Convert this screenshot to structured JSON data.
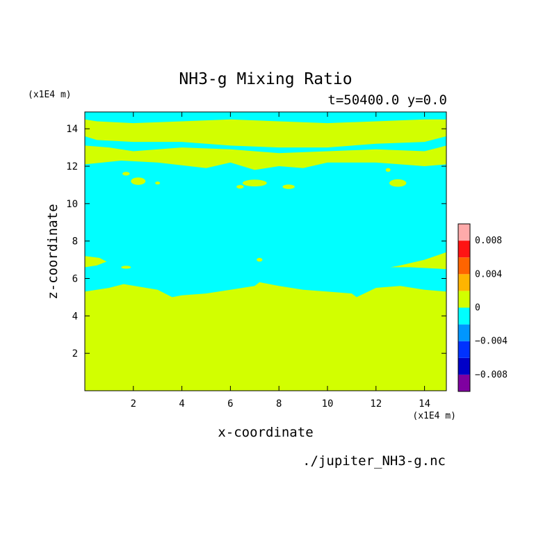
{
  "chart_data": {
    "type": "heatmap",
    "title": "NH3-g Mixing Ratio",
    "subtitle": "t=50400.0 y=0.0",
    "xlabel": "x-coordinate",
    "ylabel": "z-coordinate",
    "x_unit": "(x1E4 m)",
    "y_unit": "(x1E4 m)",
    "xlim": [
      0,
      14.9
    ],
    "ylim": [
      0,
      14.9
    ],
    "x_ticks": [
      2,
      4,
      6,
      8,
      10,
      12,
      14
    ],
    "y_ticks": [
      2,
      4,
      6,
      8,
      10,
      12,
      14
    ],
    "source_file": "./jupiter_NH3-g.nc",
    "colorbar": {
      "levels": [
        -0.01,
        -0.008,
        -0.006,
        -0.004,
        -0.002,
        0,
        0.002,
        0.004,
        0.006,
        0.008,
        0.01
      ],
      "colors": [
        "#7f00a0",
        "#0000c8",
        "#0032ff",
        "#0096ff",
        "#00ffff",
        "#d2ff00",
        "#ffb400",
        "#ff6400",
        "#ff1414",
        "#ffaaaa"
      ],
      "tick_labels": [
        {
          "value": 0.008,
          "label": "0.008"
        },
        {
          "value": 0.004,
          "label": "0.004"
        },
        {
          "value": 0,
          "label": "0"
        },
        {
          "value": -0.004,
          "label": "−0.004"
        },
        {
          "value": -0.008,
          "label": "−0.008"
        }
      ]
    },
    "regions": [
      {
        "name": "upper-band",
        "level": "0 to 0.002",
        "top": [
          [
            0,
            14.5
          ],
          [
            0.5,
            14.4
          ],
          [
            2,
            14.3
          ],
          [
            4,
            14.4
          ],
          [
            6,
            14.5
          ],
          [
            8,
            14.4
          ],
          [
            10,
            14.3
          ],
          [
            12,
            14.4
          ],
          [
            14,
            14.5
          ],
          [
            14.9,
            14.5
          ]
        ],
        "bottom": [
          [
            0,
            13.6
          ],
          [
            0.5,
            13.4
          ],
          [
            2,
            13.3
          ],
          [
            4,
            13.3
          ],
          [
            6,
            13.1
          ],
          [
            8,
            13.0
          ],
          [
            10,
            13.0
          ],
          [
            12,
            13.2
          ],
          [
            14,
            13.3
          ],
          [
            14.9,
            13.6
          ]
        ]
      },
      {
        "name": "middle-band",
        "level": "0 to 0.002",
        "top": [
          [
            0,
            13.1
          ],
          [
            1,
            13.0
          ],
          [
            2,
            12.8
          ],
          [
            4,
            13.0
          ],
          [
            6,
            12.9
          ],
          [
            8,
            12.7
          ],
          [
            10,
            12.8
          ],
          [
            12,
            12.9
          ],
          [
            14,
            12.8
          ],
          [
            14.9,
            13.1
          ]
        ],
        "bottom": [
          [
            0,
            12.1
          ],
          [
            1.5,
            12.3
          ],
          [
            3,
            12.2
          ],
          [
            5,
            11.9
          ],
          [
            6,
            12.2
          ],
          [
            7,
            11.8
          ],
          [
            8,
            12.0
          ],
          [
            9,
            11.9
          ],
          [
            10,
            12.2
          ],
          [
            12,
            12.2
          ],
          [
            14,
            12.0
          ],
          [
            14.9,
            12.1
          ]
        ]
      },
      {
        "name": "lower-region",
        "level": "0 to 0.002",
        "top": [
          [
            0,
            5.3
          ],
          [
            1,
            5.5
          ],
          [
            1.6,
            5.7
          ],
          [
            3,
            5.4
          ],
          [
            3.6,
            5.0
          ],
          [
            4,
            5.1
          ],
          [
            5,
            5.2
          ],
          [
            6,
            5.4
          ],
          [
            7,
            5.6
          ],
          [
            7.2,
            5.8
          ],
          [
            8,
            5.6
          ],
          [
            9,
            5.4
          ],
          [
            10,
            5.3
          ],
          [
            11,
            5.2
          ],
          [
            11.2,
            5.0
          ],
          [
            12,
            5.5
          ],
          [
            13,
            5.6
          ],
          [
            14,
            5.4
          ],
          [
            14.9,
            5.3
          ]
        ]
      },
      {
        "name": "left-intrusion",
        "level": "0 to 0.002",
        "points": [
          [
            0,
            7.2
          ],
          [
            0.6,
            7.1
          ],
          [
            0.9,
            6.9
          ],
          [
            0.5,
            6.7
          ],
          [
            0,
            6.6
          ]
        ]
      },
      {
        "name": "right-intrusion",
        "level": "0 to 0.002",
        "points": [
          [
            14.9,
            7.4
          ],
          [
            14,
            7.0
          ],
          [
            13,
            6.7
          ],
          [
            12.6,
            6.6
          ],
          [
            13.4,
            6.6
          ],
          [
            14.9,
            6.5
          ]
        ]
      },
      {
        "name": "blob-1",
        "level": "0 to 0.002",
        "center": [
          1.7,
          11.6
        ],
        "radius": [
          0.15,
          0.1
        ]
      },
      {
        "name": "blob-2",
        "level": "0 to 0.002",
        "center": [
          2.2,
          11.2
        ],
        "radius": [
          0.3,
          0.2
        ]
      },
      {
        "name": "blob-3",
        "level": "0 to 0.002",
        "center": [
          3.0,
          11.1
        ],
        "radius": [
          0.1,
          0.08
        ]
      },
      {
        "name": "blob-4",
        "level": "0 to 0.002",
        "center": [
          7.0,
          11.1
        ],
        "radius": [
          0.5,
          0.18
        ]
      },
      {
        "name": "blob-5",
        "level": "0 to 0.002",
        "center": [
          6.4,
          10.9
        ],
        "radius": [
          0.15,
          0.1
        ]
      },
      {
        "name": "blob-6",
        "level": "0 to 0.002",
        "center": [
          8.4,
          10.9
        ],
        "radius": [
          0.25,
          0.12
        ]
      },
      {
        "name": "blob-7",
        "level": "0 to 0.002",
        "center": [
          12.5,
          11.8
        ],
        "radius": [
          0.1,
          0.1
        ]
      },
      {
        "name": "blob-8",
        "level": "0 to 0.002",
        "center": [
          12.9,
          11.1
        ],
        "radius": [
          0.35,
          0.2
        ]
      },
      {
        "name": "blob-9",
        "level": "0 to 0.002",
        "center": [
          7.2,
          7.0
        ],
        "radius": [
          0.12,
          0.1
        ]
      },
      {
        "name": "blob-10",
        "level": "0 to 0.002",
        "center": [
          1.7,
          6.6
        ],
        "radius": [
          0.2,
          0.08
        ]
      }
    ],
    "background_level": "-0.002 to 0",
    "grid": false,
    "legend": "colorbar-right"
  }
}
